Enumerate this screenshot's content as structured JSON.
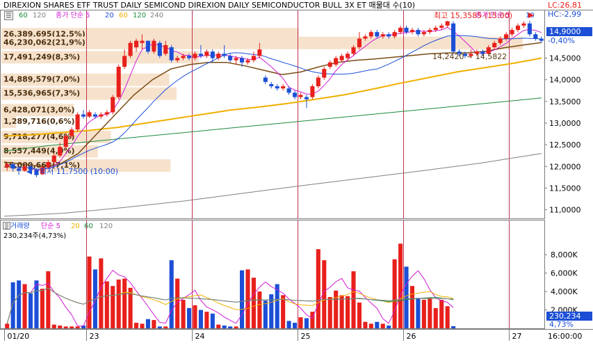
{
  "window": {
    "title": "DIREXION SHARES ETF TRUST DAILY SEMICOND  DIREXION DAILY SEMICONDUCTOR BULL 3X ET 매물대 수(10)",
    "lc_label": "LC:26,81",
    "hc_label": "HC:-2,99"
  },
  "price_legend": {
    "ma_values": [
      "60",
      "120",
      "240"
    ],
    "right_label": "종가 단순 5",
    "right_value": "10",
    "close_ma_label": "종가 단순 5",
    "close_ma_values": [
      "20",
      "60",
      "120",
      "240"
    ]
  },
  "volume_legend": {
    "label": "거래량",
    "ma_label": "단순 5",
    "ma_values": [
      "20",
      "60",
      "120"
    ],
    "current": "230,234주(4,73%)"
  },
  "annotations": {
    "high": "최고 15,3585 (15:00)",
    "low": "최저 11,7500 (10:00)",
    "range": "14,2420 ~ 14,5822"
  },
  "current_price": "14,9000",
  "current_change": "-0,40%",
  "current_volume": "230,234",
  "current_volume_pct": "4,73%",
  "colors": {
    "up": "#e8201c",
    "down": "#1c4fd6",
    "ma5": "#d21bd6",
    "ma20": "#1c4fd6",
    "ma60": "#7a4a14",
    "ma120": "#f0b000",
    "ma240": "#1c8a3c",
    "ma_long": "#808080",
    "profile": "#f6e2cc",
    "divider": "#c03050"
  },
  "chart_data": [
    {
      "type": "candlestick",
      "title": "",
      "x_tick_labels": [
        "01/20",
        "23",
        "24",
        "25",
        "26",
        "27",
        "16:00:00"
      ],
      "y_axis_labels": [
        "11,0000",
        "11,5000",
        "12,0000",
        "12,5000",
        "13,0000",
        "13,5000",
        "14,0000",
        "14,5000"
      ],
      "ylim": [
        10.8,
        15.6
      ],
      "candles": [
        [
          11.98,
          12.05,
          12.1,
          11.9
        ],
        [
          12.05,
          11.95,
          12.1,
          11.88
        ],
        [
          11.95,
          11.9,
          12.0,
          11.8
        ],
        [
          11.9,
          12.0,
          12.05,
          11.88
        ],
        [
          12.0,
          11.92,
          12.05,
          11.88
        ],
        [
          11.92,
          11.8,
          11.95,
          11.75
        ],
        [
          11.82,
          11.98,
          12.02,
          11.8
        ],
        [
          11.98,
          12.1,
          12.15,
          11.95
        ],
        [
          12.1,
          12.25,
          12.3,
          12.05
        ],
        [
          12.25,
          12.45,
          12.55,
          12.2
        ],
        [
          12.45,
          12.7,
          12.75,
          12.4
        ],
        [
          12.7,
          12.85,
          12.9,
          12.65
        ],
        [
          12.85,
          13.2,
          13.25,
          12.8
        ],
        [
          13.2,
          13.15,
          13.3,
          13.1
        ],
        [
          13.15,
          13.25,
          13.3,
          13.12
        ],
        [
          13.2,
          13.15,
          13.25,
          13.1
        ],
        [
          13.15,
          13.2,
          13.25,
          13.1
        ],
        [
          13.2,
          13.25,
          13.3,
          13.15
        ],
        [
          13.25,
          13.6,
          13.65,
          13.2
        ],
        [
          13.6,
          14.3,
          14.35,
          13.55
        ],
        [
          14.3,
          14.55,
          14.7,
          14.25
        ],
        [
          14.55,
          14.85,
          14.9,
          14.5
        ],
        [
          14.75,
          14.9,
          14.95,
          14.65
        ],
        [
          14.85,
          14.9,
          15.05,
          14.7
        ],
        [
          14.9,
          14.65,
          14.9,
          14.6
        ],
        [
          14.65,
          14.9,
          14.95,
          14.6
        ],
        [
          14.85,
          14.55,
          14.9,
          14.5
        ],
        [
          14.6,
          14.8,
          14.9,
          14.55
        ],
        [
          14.75,
          14.45,
          14.8,
          14.4
        ],
        [
          14.45,
          14.5,
          14.55,
          14.4
        ],
        [
          14.5,
          14.55,
          14.6,
          14.45
        ],
        [
          14.55,
          14.5,
          14.6,
          14.45
        ],
        [
          14.5,
          14.6,
          14.65,
          14.45
        ],
        [
          14.6,
          14.55,
          14.8,
          14.5
        ],
        [
          14.55,
          14.65,
          14.7,
          14.5
        ],
        [
          14.65,
          14.5,
          14.7,
          14.4
        ],
        [
          14.5,
          14.6,
          14.65,
          14.45
        ],
        [
          14.6,
          14.55,
          14.8,
          14.5
        ],
        [
          14.55,
          14.45,
          14.6,
          14.4
        ],
        [
          14.45,
          14.5,
          14.55,
          14.35
        ],
        [
          14.5,
          14.4,
          14.55,
          14.3
        ],
        [
          14.4,
          14.45,
          14.5,
          14.35
        ],
        [
          14.45,
          14.55,
          14.65,
          14.4
        ],
        [
          14.55,
          14.7,
          14.85,
          14.5
        ],
        [
          14.05,
          13.95,
          14.1,
          13.9
        ],
        [
          13.9,
          13.85,
          13.95,
          13.8
        ],
        [
          13.85,
          13.8,
          13.9,
          13.75
        ],
        [
          13.8,
          13.85,
          13.9,
          13.75
        ],
        [
          13.8,
          13.7,
          13.85,
          13.65
        ],
        [
          13.7,
          13.6,
          13.75,
          13.55
        ],
        [
          13.6,
          13.65,
          13.7,
          13.55
        ],
        [
          13.6,
          13.55,
          13.65,
          13.35
        ],
        [
          13.6,
          13.85,
          13.9,
          13.55
        ],
        [
          13.85,
          14.05,
          14.1,
          13.8
        ],
        [
          14.05,
          14.25,
          14.3,
          14.0
        ],
        [
          14.3,
          14.4,
          14.45,
          14.25
        ],
        [
          14.35,
          14.5,
          14.55,
          14.3
        ],
        [
          14.45,
          14.55,
          14.6,
          14.4
        ],
        [
          14.5,
          14.6,
          14.65,
          14.45
        ],
        [
          14.6,
          14.75,
          14.8,
          14.55
        ],
        [
          14.75,
          14.95,
          15.1,
          14.7
        ],
        [
          14.95,
          15.0,
          15.05,
          14.9
        ],
        [
          15.0,
          15.1,
          15.15,
          14.95
        ],
        [
          15.1,
          15.0,
          15.15,
          14.95
        ],
        [
          15.0,
          15.05,
          15.1,
          14.95
        ],
        [
          15.05,
          15.0,
          15.1,
          14.95
        ],
        [
          15.0,
          15.1,
          15.15,
          14.95
        ],
        [
          15.1,
          15.2,
          15.25,
          15.05
        ],
        [
          15.2,
          15.1,
          15.25,
          15.05
        ],
        [
          15.1,
          15.15,
          15.2,
          15.05
        ],
        [
          15.15,
          15.05,
          15.2,
          15.0
        ],
        [
          15.05,
          15.1,
          15.15,
          15.0
        ],
        [
          15.1,
          15.15,
          15.2,
          15.05
        ],
        [
          15.15,
          15.2,
          15.25,
          15.1
        ],
        [
          15.2,
          15.25,
          15.3,
          15.15
        ],
        [
          15.25,
          15.35,
          15.36,
          15.2
        ],
        [
          15.3,
          14.65,
          15.35,
          14.6
        ],
        [
          14.65,
          14.6,
          14.7,
          14.55
        ],
        [
          14.6,
          14.55,
          14.65,
          14.5
        ],
        [
          14.55,
          14.6,
          14.7,
          14.5
        ],
        [
          14.6,
          14.65,
          14.7,
          14.55
        ],
        [
          14.65,
          14.6,
          14.7,
          14.55
        ],
        [
          14.6,
          14.75,
          14.8,
          14.55
        ],
        [
          14.75,
          14.85,
          14.9,
          14.7
        ],
        [
          14.85,
          14.95,
          15.0,
          14.8
        ],
        [
          14.95,
          15.05,
          15.1,
          14.9
        ],
        [
          15.05,
          15.15,
          15.2,
          15.0
        ],
        [
          15.15,
          15.25,
          15.3,
          15.1
        ],
        [
          15.25,
          15.3,
          15.35,
          15.2
        ],
        [
          15.3,
          15.05,
          15.36,
          15.0
        ],
        [
          15.05,
          14.95,
          15.1,
          14.9
        ],
        [
          14.95,
          14.9,
          15.0,
          14.85
        ]
      ],
      "volume_profile": [
        {
          "price": 15.05,
          "label": "26,389,695(12,5%)",
          "value": 26389695
        },
        {
          "price": 14.85,
          "label": "46,230,062(21,9%)",
          "value": 46230062
        },
        {
          "price": 14.52,
          "label": "17,491,249(8,3%)",
          "value": 17491249
        },
        {
          "price": 14.0,
          "label": "14,889,579(7,0%)",
          "value": 14889579
        },
        {
          "price": 13.68,
          "label": "15,536,965(7,3%)",
          "value": 15536965
        },
        {
          "price": 13.3,
          "label": "6,428,071(3,0%)",
          "value": 6428071
        },
        {
          "price": 13.03,
          "label": "1,289,716(0,6%)",
          "value": 1289716
        },
        {
          "price": 12.68,
          "label": "9,718,277(4,6%)",
          "value": 9718277
        },
        {
          "price": 12.35,
          "label": "8,557,449(4,0%)",
          "value": 8557449
        },
        {
          "price": 12.02,
          "label": "15,000,663(7,1%)",
          "value": 15000663
        }
      ],
      "moving_averages": {
        "ma60": [
          12.1,
          12.05,
          12.0,
          12.05,
          12.3,
          12.75,
          13.2,
          13.65,
          14.0,
          14.25,
          14.35,
          14.4,
          14.4,
          14.32,
          14.22,
          14.12,
          14.18,
          14.3,
          14.4,
          14.45,
          14.48,
          14.52,
          14.56,
          14.6,
          14.62,
          14.62,
          14.66,
          14.74,
          14.8,
          14.86
        ],
        "ma120": [
          12.7,
          12.73,
          12.78,
          12.83,
          12.9,
          13.0,
          13.1,
          13.2,
          13.3,
          13.37,
          13.45,
          13.55,
          13.65,
          13.78,
          13.92,
          14.05,
          14.18,
          14.28,
          14.38,
          14.5
        ],
        "ma240": [
          12.35,
          12.48,
          12.58,
          12.68,
          12.78,
          12.88,
          12.98,
          13.08,
          13.18,
          13.28,
          13.38,
          13.48,
          13.58
        ],
        "ma_long": [
          10.85,
          10.92,
          11.05,
          11.2,
          11.38,
          11.56,
          11.73,
          11.9,
          12.08,
          12.3
        ]
      },
      "volume": {
        "y_axis_labels": [
          "2,000K",
          "4,000K",
          "6,000K",
          "8,000K"
        ],
        "ylim": [
          0,
          9600
        ],
        "values": [
          500,
          5000,
          5200,
          4800,
          3800,
          5200,
          4300,
          6200,
          400,
          300,
          200,
          200,
          200,
          300,
          7800,
          6400,
          7600,
          5100,
          4600,
          5300,
          5400,
          4400,
          600,
          500,
          1000,
          900,
          200,
          200,
          7400,
          5400,
          3100,
          2200,
          2500,
          2000,
          1800,
          1600,
          400,
          300,
          200,
          200,
          6300,
          6400,
          5500,
          4000,
          3000,
          3700,
          4800,
          3600,
          800,
          600,
          1200,
          1100,
          1800,
          8600,
          7400,
          3400,
          4100,
          3600,
          3500,
          6200,
          2800,
          700,
          500,
          700,
          500,
          300,
          7500,
          9200,
          6700,
          4600,
          3300,
          3100,
          3300,
          2200,
          3100,
          2400,
          230
        ]
      }
    }
  ]
}
